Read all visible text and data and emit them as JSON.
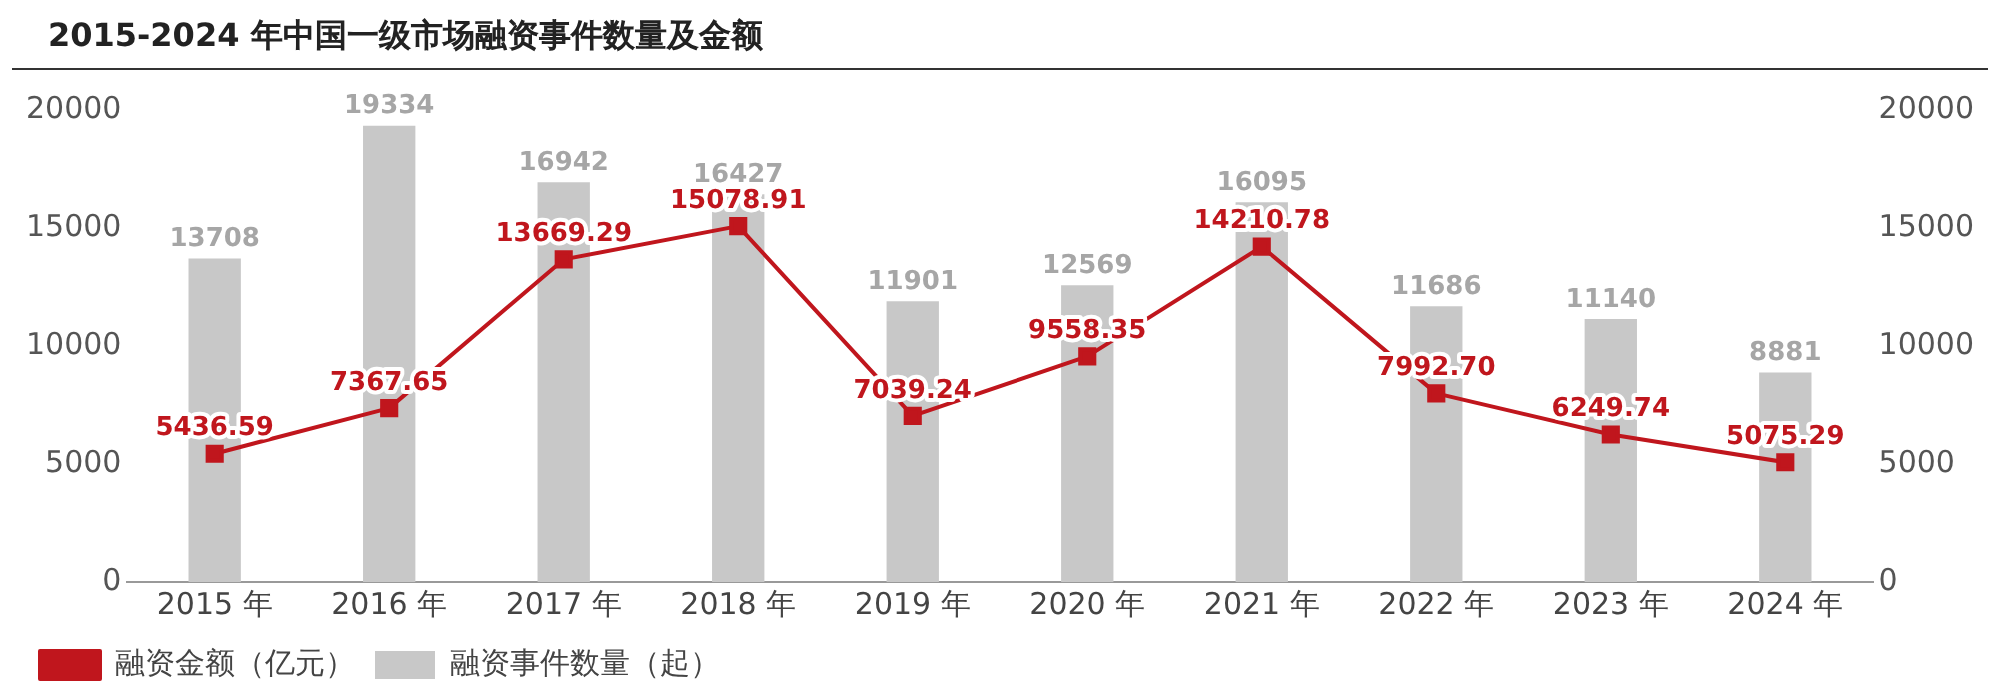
{
  "chart_data": {
    "type": "bar",
    "title": "2015-2024 年中国一级市场融资事件数量及金额",
    "categories": [
      "2015 年",
      "2016 年",
      "2017 年",
      "2018 年",
      "2019 年",
      "2020 年",
      "2021 年",
      "2022 年",
      "2023 年",
      "2024 年"
    ],
    "series": [
      {
        "name": "融资事件数量（起）",
        "type": "bar",
        "color": "#c8c8c8",
        "values": [
          13708,
          19334,
          16942,
          16427,
          11901,
          12569,
          16095,
          11686,
          11140,
          8881
        ],
        "value_labels": [
          "13708",
          "19334",
          "16942",
          "16427",
          "11901",
          "12569",
          "16095",
          "11686",
          "11140",
          "8881"
        ]
      },
      {
        "name": "融资金额（亿元）",
        "type": "line",
        "axis": "y2",
        "color": "#c0161d",
        "marker": "square",
        "values": [
          5436.59,
          7367.65,
          13669.29,
          15078.91,
          7039.24,
          9558.35,
          14210.78,
          7992.7,
          6249.74,
          5075.29
        ],
        "value_labels": [
          "5436.59",
          "7367.65",
          "13669.29",
          "15078.91",
          "7039.24",
          "9558.35",
          "14210.78",
          "7992.70",
          "6249.74",
          "5075.29"
        ]
      }
    ],
    "ylim": [
      0,
      20000
    ],
    "yticks": [
      0,
      5000,
      10000,
      15000,
      20000
    ],
    "y2lim": [
      0,
      20000
    ],
    "y2ticks": [
      0,
      5000,
      10000,
      15000,
      20000
    ],
    "grid": false,
    "legend": "bottom left"
  }
}
